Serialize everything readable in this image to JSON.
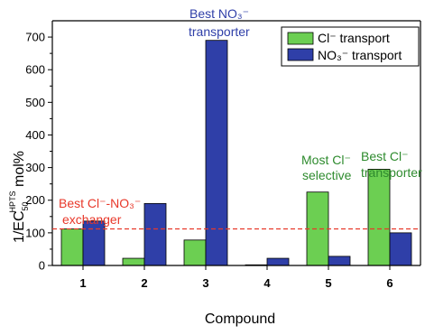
{
  "chart_data": {
    "type": "bar",
    "categories": [
      "1",
      "2",
      "3",
      "4",
      "5",
      "6"
    ],
    "series": [
      {
        "name": "Cl⁻ transport",
        "color": "#6ccf52",
        "values": [
          112,
          22,
          78,
          2,
          225,
          295
        ]
      },
      {
        "name": "NO₃⁻ transport",
        "color": "#2f3fa8",
        "values": [
          136,
          190,
          690,
          22,
          28,
          100
        ]
      }
    ],
    "xlabel": "Compound",
    "ylabel": {
      "main": "1/EC",
      "sub": "50",
      "sup": "HPTS",
      "suffix": " mol%"
    },
    "ylim": [
      0,
      750
    ],
    "yticks": [
      0,
      100,
      200,
      300,
      400,
      500,
      600,
      700
    ],
    "reference_line": {
      "y": 112,
      "color": "#e8382a",
      "style": "dashed"
    },
    "legend_position": "top-right",
    "annotations": [
      {
        "lines": [
          "Best Cl⁻-NO₃⁻",
          "exchanger"
        ],
        "color": "#e8382a"
      },
      {
        "lines": [
          "Best NO₃⁻",
          "transporter"
        ],
        "color": "#2f3fa8"
      },
      {
        "lines": [
          "Most Cl⁻",
          "selective"
        ],
        "color": "#2e8b2e"
      },
      {
        "lines": [
          "Best Cl⁻",
          "transporter"
        ],
        "color": "#2e8b2e"
      }
    ]
  }
}
